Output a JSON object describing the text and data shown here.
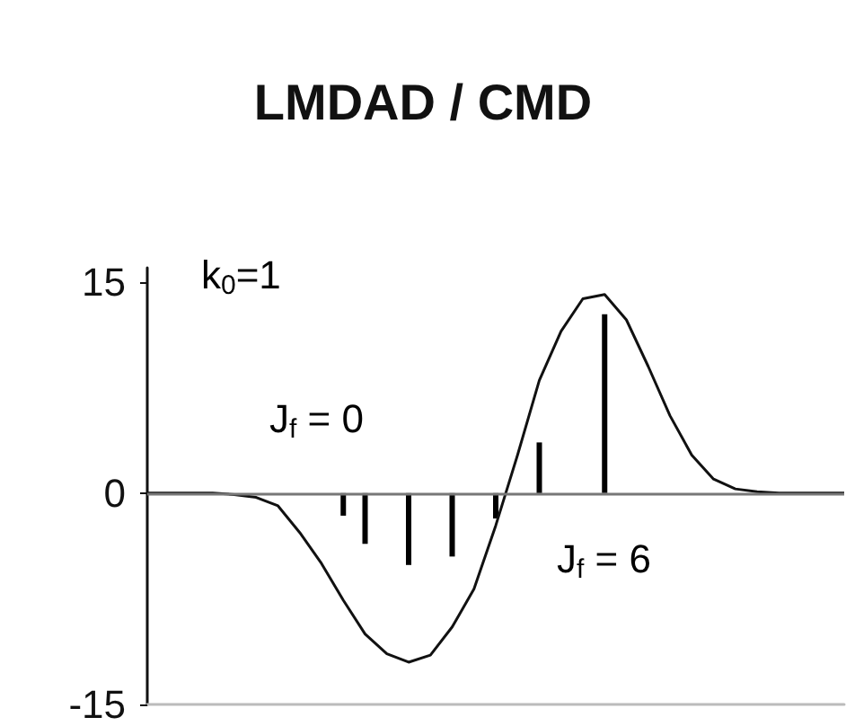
{
  "chart_data": {
    "type": "line",
    "title": "LMDAD / CMD",
    "annotations": [
      "k$_{0}$=1",
      "J$_{f}$ = 0",
      "J$_{f}$ = 6"
    ],
    "categories": [
      null,
      null,
      null,
      null,
      null,
      null,
      null,
      null,
      null,
      null,
      null,
      null,
      null,
      null,
      null,
      null,
      null,
      null,
      null,
      null,
      null,
      null,
      null,
      null,
      null,
      null,
      null,
      null,
      null,
      null,
      null,
      null,
      null
    ],
    "series": [
      {
        "color": "#111111",
        "values": [
          0,
          0,
          0,
          0,
          -0.1,
          -0.3,
          -0.9,
          -2.8,
          -5.0,
          -7.6,
          -10.0,
          -11.4,
          -12.0,
          -11.5,
          -9.5,
          -6.8,
          -2.3,
          2.7,
          8.0,
          11.5,
          13.8,
          14.1,
          12.3,
          9.0,
          5.5,
          2.7,
          1.0,
          0.3,
          0.1,
          0,
          0,
          0,
          0
        ]
      },
      {
        "type": "bar",
        "color": "#000000",
        "values": [
          null,
          null,
          null,
          null,
          null,
          null,
          null,
          null,
          null,
          -1.6,
          -3.6,
          null,
          -5.1,
          null,
          -4.5,
          null,
          -1.8,
          null,
          3.6,
          null,
          null,
          12.7,
          null,
          null,
          null,
          null,
          null,
          null,
          null,
          null,
          null,
          null,
          null
        ]
      }
    ],
    "ylim": [
      -15,
      16
    ],
    "yticks": [
      -15,
      0,
      15
    ],
    "ref_lines": [
      {
        "axis": "y",
        "value": 0,
        "color": "#777777"
      }
    ],
    "tick_labels": "y",
    "grid": false,
    "marker": "none"
  }
}
